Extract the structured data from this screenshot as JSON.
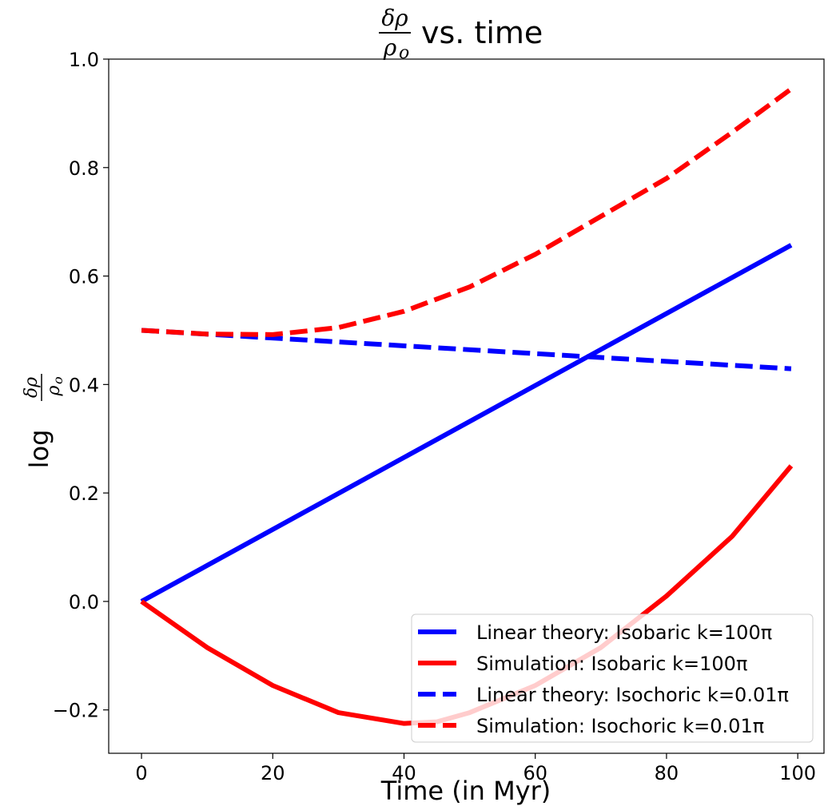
{
  "chart_data": {
    "type": "line",
    "title": {
      "fraction_numerator": "δρ",
      "fraction_denominator": "ρ",
      "fraction_denominator_sub": "o",
      "suffix": "vs. time"
    },
    "xlabel": "Time (in Myr)",
    "ylabel": {
      "prefix": "log",
      "fraction_numerator": "δρ",
      "fraction_denominator": "ρ",
      "fraction_denominator_sub": "o"
    },
    "xlim": [
      -5,
      104
    ],
    "ylim": [
      -0.28,
      1.0
    ],
    "xticks": [
      0,
      20,
      40,
      60,
      80,
      100
    ],
    "xtick_labels": [
      "0",
      "20",
      "40",
      "60",
      "80",
      "100"
    ],
    "yticks": [
      -0.2,
      0.0,
      0.2,
      0.4,
      0.6,
      0.8,
      1.0
    ],
    "ytick_labels": [
      "−0.2",
      "0.0",
      "0.2",
      "0.4",
      "0.6",
      "0.8",
      "1.0"
    ],
    "grid": false,
    "legend_position": "bottom-right",
    "series": [
      {
        "name": "Linear theory: Isobaric k=100π",
        "color": "#0000ff",
        "style": "solid",
        "x": [
          0,
          99
        ],
        "y": [
          0.0,
          0.657
        ]
      },
      {
        "name": "Simulation: Isobaric k=100π",
        "color": "#ff0000",
        "style": "solid",
        "x": [
          0,
          10,
          20,
          30,
          40,
          45,
          50,
          60,
          70,
          80,
          90,
          99
        ],
        "y": [
          0.0,
          -0.085,
          -0.155,
          -0.205,
          -0.225,
          -0.222,
          -0.205,
          -0.155,
          -0.085,
          0.01,
          0.12,
          0.25
        ]
      },
      {
        "name": "Linear theory: Isochoric k=0.01π",
        "color": "#0000ff",
        "style": "dashed",
        "x": [
          0,
          99
        ],
        "y": [
          0.5,
          0.429
        ]
      },
      {
        "name": "Simulation: Isochoric k=0.01π",
        "color": "#ff0000",
        "style": "dashed",
        "x": [
          0,
          10,
          20,
          30,
          40,
          50,
          60,
          70,
          80,
          90,
          99
        ],
        "y": [
          0.5,
          0.493,
          0.492,
          0.505,
          0.535,
          0.58,
          0.64,
          0.71,
          0.78,
          0.865,
          0.945
        ]
      }
    ]
  }
}
